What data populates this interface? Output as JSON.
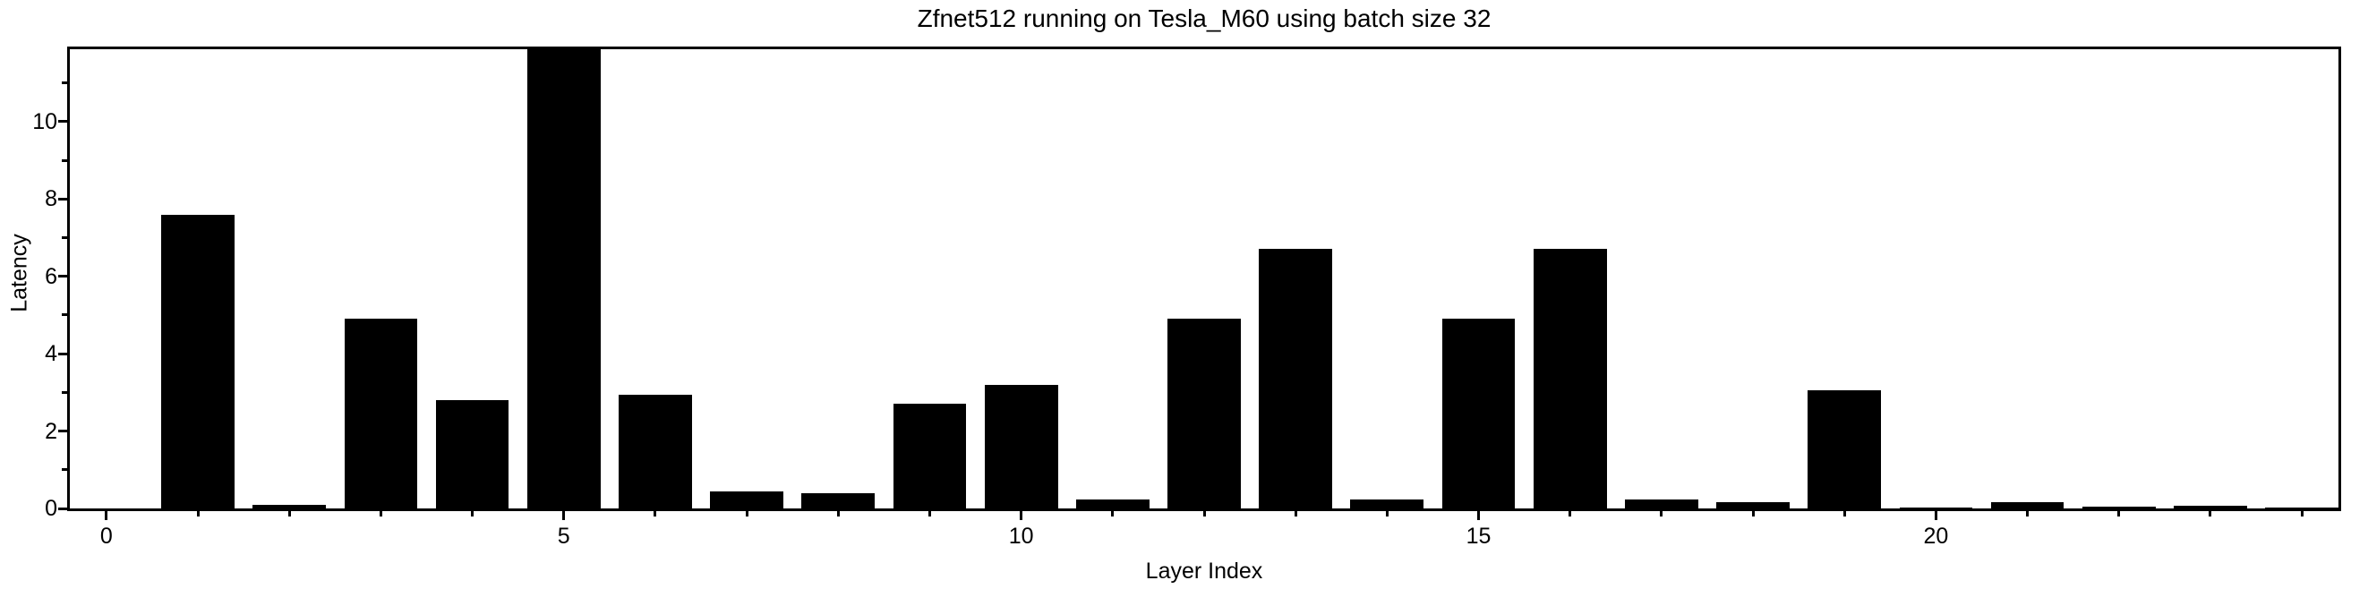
{
  "chart_data": {
    "type": "bar",
    "title": "Zfnet512 running on Tesla_M60 using batch size 32",
    "xlabel": "Layer Index",
    "ylabel": "Latency",
    "x": [
      0,
      1,
      2,
      3,
      4,
      5,
      6,
      7,
      8,
      9,
      10,
      11,
      12,
      13,
      14,
      15,
      16,
      17,
      18,
      19,
      20,
      21,
      22,
      23,
      24
    ],
    "values": [
      0,
      7.6,
      0.1,
      4.9,
      2.8,
      11.87,
      2.95,
      0.45,
      0.4,
      2.7,
      3.2,
      0.23,
      4.9,
      6.7,
      0.23,
      4.9,
      6.7,
      0.22,
      0.17,
      3.05,
      0.02,
      0.17,
      0.04,
      0.06,
      0.03
    ],
    "bar_width": 0.8,
    "bar_color": "#000000",
    "background_color": "#ffffff",
    "xlim": [
      -0.4,
      24.4
    ],
    "ylim": [
      0,
      11.87
    ],
    "x_major_ticks": [
      0,
      5,
      10,
      15,
      20
    ],
    "x_major_tick_labels": [
      "0",
      "5",
      "10",
      "15",
      "20"
    ],
    "y_major_ticks": [
      0,
      2,
      4,
      6,
      8,
      10
    ],
    "y_major_tick_labels": [
      "0",
      "2",
      "4",
      "6",
      "8",
      "10"
    ],
    "x_minor_ticks": [
      1,
      2,
      3,
      4,
      6,
      7,
      8,
      9,
      11,
      12,
      13,
      14,
      16,
      17,
      18,
      19,
      21,
      22,
      23,
      24
    ],
    "y_minor_ticks": [
      1,
      3,
      5,
      7,
      9,
      11
    ],
    "grid": {
      "axis": "y",
      "linestyle": "dotted",
      "color": "#a8a8a8"
    },
    "legend": "none"
  }
}
